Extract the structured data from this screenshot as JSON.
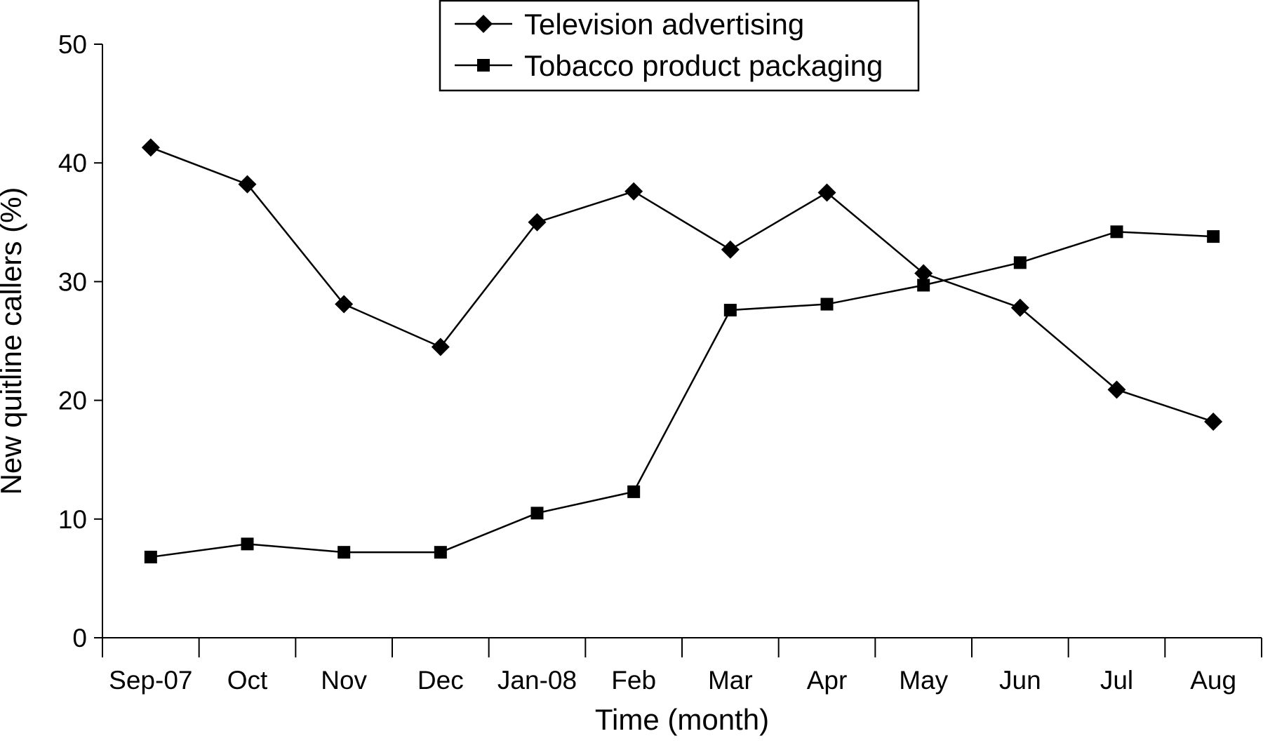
{
  "chart_data": {
    "type": "line",
    "title": "",
    "xlabel": "Time (month)",
    "ylabel": "New quitline callers (%)",
    "categories": [
      "Sep-07",
      "Oct",
      "Nov",
      "Dec",
      "Jan-08",
      "Feb",
      "Mar",
      "Apr",
      "May",
      "Jun",
      "Jul",
      "Aug"
    ],
    "ylim": [
      0,
      50
    ],
    "yticks": [
      0,
      10,
      20,
      30,
      40,
      50
    ],
    "grid": false,
    "legend_position": "top-center",
    "series": [
      {
        "name": "Television advertising",
        "marker": "diamond",
        "color": "#000000",
        "values": [
          41.3,
          38.2,
          28.1,
          24.5,
          35.0,
          37.6,
          32.7,
          37.5,
          30.7,
          27.8,
          20.9,
          18.2
        ]
      },
      {
        "name": "Tobacco product packaging",
        "marker": "square",
        "color": "#000000",
        "values": [
          6.8,
          7.9,
          7.2,
          7.2,
          10.5,
          12.3,
          27.6,
          28.1,
          29.7,
          31.6,
          34.2,
          33.8
        ]
      }
    ]
  }
}
